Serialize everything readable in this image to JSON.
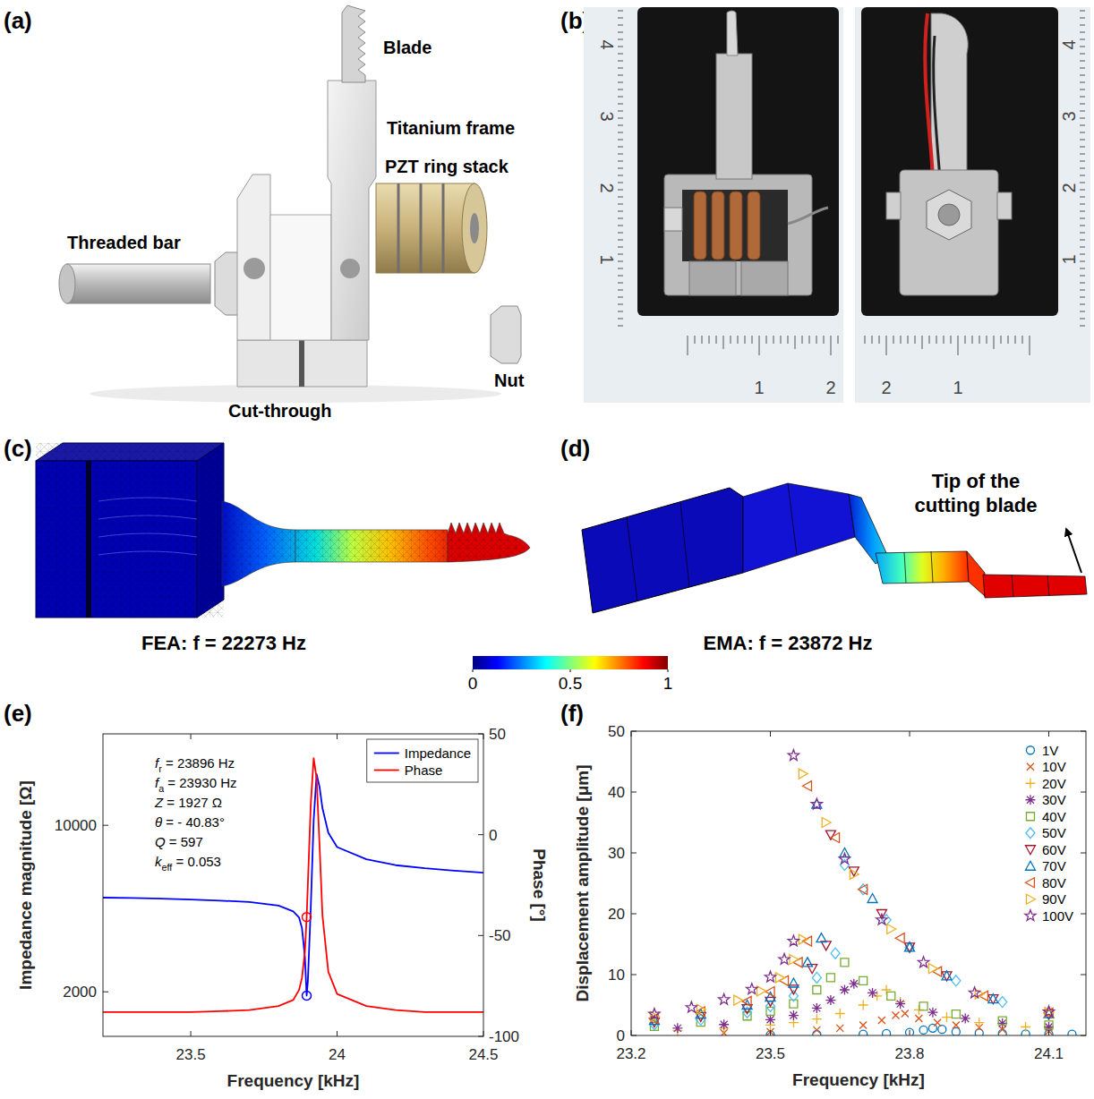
{
  "panel_labels": [
    "(a)",
    "(b)",
    "(c)",
    "(d)",
    "(e)",
    "(f)"
  ],
  "diagram_a": {
    "blade": "Blade",
    "frame": "Titanium frame",
    "threaded_bar": "Threaded bar",
    "pzt_stack": "PZT ring stack",
    "nut": "Nut",
    "cut_through": "Cut-through"
  },
  "photo_b": {
    "left": {
      "vertical": [
        4,
        3,
        2,
        1
      ],
      "horizontal": [
        1,
        2
      ]
    },
    "right": {
      "vertical": [
        4,
        3,
        2,
        1
      ],
      "horizontal": [
        2,
        1
      ]
    }
  },
  "fea_c": {
    "caption": "FEA: f = 22273 Hz"
  },
  "ema_d": {
    "caption": "EMA: f = 23872 Hz",
    "annotation": "Tip of the cutting blade"
  },
  "colorbar": {
    "range": [
      0,
      1
    ],
    "ticks": [
      0,
      0.5,
      1
    ]
  },
  "chart_data": [
    {
      "type": "line",
      "x_label": "Frequency [kHz]",
      "y_label": "Impedance magnitude [Ω]",
      "y2_label": "Phase [°]",
      "xlim": [
        23.2,
        24.5
      ],
      "xticks": [
        23.5,
        24,
        24.5
      ],
      "ylim": [
        1300,
        24200
      ],
      "yticks": [
        2000,
        10000
      ],
      "log": "y",
      "y2lim": [
        -100,
        50
      ],
      "y2ticks": [
        -100,
        -50,
        0,
        50
      ],
      "grid": false,
      "legend": "upper right",
      "series": [
        {
          "name": "Impedance",
          "color": "#0000ff",
          "line_style": "solid",
          "x": [
            23.2,
            23.3,
            23.4,
            23.5,
            23.6,
            23.7,
            23.8,
            23.85,
            23.87,
            23.88,
            23.89,
            23.896,
            23.9,
            23.91,
            23.92,
            23.93,
            23.94,
            23.95,
            23.97,
            24.0,
            24.1,
            24.2,
            24.3,
            24.4,
            24.5
          ],
          "values": [
            4970,
            4950,
            4920,
            4880,
            4830,
            4760,
            4600,
            4350,
            4100,
            3700,
            2800,
            1927,
            2200,
            4500,
            10500,
            16400,
            14500,
            11800,
            9300,
            8100,
            7200,
            6800,
            6600,
            6450,
            6320
          ]
        },
        {
          "name": "Phase",
          "color": "#ff0000",
          "line_style": "solid",
          "axis": "y2",
          "x": [
            23.2,
            23.3,
            23.4,
            23.5,
            23.6,
            23.7,
            23.8,
            23.85,
            23.87,
            23.88,
            23.89,
            23.896,
            23.9,
            23.91,
            23.92,
            23.93,
            23.94,
            23.95,
            23.97,
            24.0,
            24.1,
            24.2,
            24.3,
            24.4,
            24.5
          ],
          "values": [
            -88,
            -88,
            -88,
            -88,
            -87.5,
            -87,
            -85,
            -82,
            -77,
            -71,
            -58,
            -40.83,
            -25,
            15,
            38,
            28,
            -5,
            -40,
            -68,
            -79,
            -85,
            -87,
            -88,
            -88,
            -88
          ]
        }
      ],
      "points": [
        {
          "x": 23.896,
          "value": 1927,
          "color": "#0000ff"
        },
        {
          "x": 23.896,
          "value": -40.83,
          "axis": "y2",
          "color": "#ff0000"
        }
      ],
      "annotations": [
        {
          "symbol": "f",
          "subscript": "r",
          "text": " = 23896 Hz"
        },
        {
          "symbol": "f",
          "subscript": "a",
          "text": " = 23930 Hz"
        },
        {
          "symbol": "Z",
          "text": " = 1927 Ω"
        },
        {
          "symbol": "θ",
          "text": " = - 40.83°"
        },
        {
          "symbol": "Q",
          "text": " = 597"
        },
        {
          "symbol": "k",
          "subscript": "eff",
          "text": " = 0.053"
        }
      ]
    },
    {
      "type": "scatter",
      "x_label": "Frequency [kHz]",
      "y_label": "Displacement amplitude [μm]",
      "xlim": [
        23.2,
        24.18
      ],
      "xticks": [
        23.2,
        23.5,
        23.8,
        24.1
      ],
      "ylim": [
        0,
        50
      ],
      "yticks": [
        0,
        10,
        20,
        30,
        40,
        50
      ],
      "grid": false,
      "legend": "upper right",
      "series": [
        {
          "name": "1V",
          "color": "#0072bd",
          "marker": "circle",
          "x": [
            23.5,
            23.6,
            23.7,
            23.75,
            23.8,
            23.83,
            23.85,
            23.87,
            23.9,
            23.95,
            24.0,
            24.05,
            24.1,
            24.15
          ],
          "values": [
            0.1,
            0.15,
            0.2,
            0.3,
            0.5,
            0.9,
            1.2,
            1.0,
            0.6,
            0.4,
            0.3,
            0.25,
            0.2,
            0.2
          ]
        },
        {
          "name": "10V",
          "color": "#d95319",
          "marker": "x",
          "x": [
            23.4,
            23.5,
            23.6,
            23.65,
            23.7,
            23.74,
            23.77,
            23.79,
            23.82,
            23.86,
            23.9,
            23.95,
            24.0,
            24.1
          ],
          "values": [
            0.4,
            0.6,
            0.9,
            1.2,
            1.7,
            2.5,
            3.3,
            3.6,
            2.8,
            2.1,
            1.7,
            1.3,
            1.0,
            0.7
          ]
        },
        {
          "name": "20V",
          "color": "#edb120",
          "marker": "plus",
          "x": [
            23.3,
            23.4,
            23.5,
            23.55,
            23.6,
            23.65,
            23.7,
            23.73,
            23.75,
            23.78,
            23.82,
            23.88,
            23.95,
            24.05
          ],
          "values": [
            0.8,
            1.2,
            1.7,
            2.1,
            2.7,
            3.6,
            5.0,
            6.5,
            7.5,
            5.5,
            4.2,
            3.0,
            2.1,
            1.4
          ]
        },
        {
          "name": "30V",
          "color": "#7e2f8e",
          "marker": "asterisk",
          "x": [
            23.3,
            23.4,
            23.5,
            23.55,
            23.6,
            23.63,
            23.66,
            23.68,
            23.72,
            23.78,
            23.85,
            23.92,
            24.0,
            24.1
          ],
          "values": [
            1.2,
            1.8,
            2.6,
            3.3,
            4.5,
            5.8,
            7.5,
            8.5,
            7.0,
            5.2,
            3.8,
            2.8,
            2.0,
            1.4
          ]
        },
        {
          "name": "40V",
          "color": "#77ac30",
          "marker": "square",
          "x": [
            23.25,
            23.35,
            23.45,
            23.5,
            23.55,
            23.6,
            23.63,
            23.66,
            23.7,
            23.76,
            23.83,
            23.9,
            24.0,
            24.1
          ],
          "values": [
            1.5,
            2.2,
            3.2,
            4.0,
            5.2,
            7.5,
            9.5,
            12.0,
            9.0,
            6.5,
            4.8,
            3.5,
            2.4,
            1.7
          ]
        },
        {
          "name": "50V",
          "color": "#4dbeee",
          "marker": "diamond",
          "x": [
            23.25,
            23.35,
            23.45,
            23.5,
            23.55,
            23.6,
            23.64,
            23.66,
            23.7,
            23.75,
            23.8,
            23.9,
            24.0,
            24.1
          ],
          "values": [
            1.8,
            2.6,
            3.8,
            4.8,
            6.5,
            9.5,
            13.5,
            28,
            24,
            19,
            14.5,
            9,
            5.5,
            3.5
          ]
        },
        {
          "name": "60V",
          "color": "#a2142f",
          "marker": "triangle-down",
          "x": [
            23.25,
            23.35,
            23.45,
            23.5,
            23.55,
            23.59,
            23.62,
            23.63,
            23.68,
            23.74,
            23.8,
            23.88,
            23.98,
            24.1
          ],
          "values": [
            2.2,
            3.1,
            4.4,
            5.6,
            7.6,
            11,
            14.8,
            33,
            27,
            20,
            14.5,
            9.8,
            6,
            3.5
          ]
        },
        {
          "name": "70V",
          "color": "#0072bd",
          "marker": "triangle-up",
          "x": [
            23.25,
            23.35,
            23.45,
            23.5,
            23.55,
            23.58,
            23.61,
            23.6,
            23.66,
            23.72,
            23.8,
            23.88,
            23.98,
            24.1
          ],
          "values": [
            2.5,
            3.5,
            5,
            6.3,
            8.6,
            12,
            16,
            38,
            30,
            22.5,
            14.5,
            9.8,
            6,
            3.6
          ]
        },
        {
          "name": "80V",
          "color": "#d95319",
          "marker": "triangle-left",
          "x": [
            23.25,
            23.35,
            23.45,
            23.5,
            23.53,
            23.56,
            23.58,
            23.58,
            23.64,
            23.7,
            23.78,
            23.86,
            23.96,
            24.1
          ],
          "values": [
            2.8,
            3.9,
            5.6,
            7.2,
            9,
            12,
            15.5,
            41,
            32.5,
            24,
            16,
            10.5,
            6.5,
            3.7
          ]
        },
        {
          "name": "90V",
          "color": "#edb120",
          "marker": "triangle-right",
          "x": [
            23.25,
            23.35,
            23.43,
            23.48,
            23.52,
            23.55,
            23.57,
            23.57,
            23.62,
            23.68,
            23.76,
            23.85,
            23.95,
            24.1
          ],
          "values": [
            3.1,
            4.3,
            5.8,
            7.3,
            9.5,
            12.5,
            15.8,
            43,
            35,
            26.5,
            17.5,
            11,
            6.8,
            3.8
          ]
        },
        {
          "name": "100V",
          "color": "#7e2f8e",
          "marker": "star",
          "x": [
            23.25,
            23.33,
            23.4,
            23.46,
            23.5,
            23.53,
            23.55,
            23.55,
            23.6,
            23.66,
            23.74,
            23.83,
            23.94,
            24.1
          ],
          "values": [
            3.5,
            4.6,
            5.9,
            7.6,
            9.6,
            12.5,
            15.5,
            46,
            38,
            29,
            19,
            12,
            7,
            3.9
          ]
        }
      ]
    }
  ]
}
